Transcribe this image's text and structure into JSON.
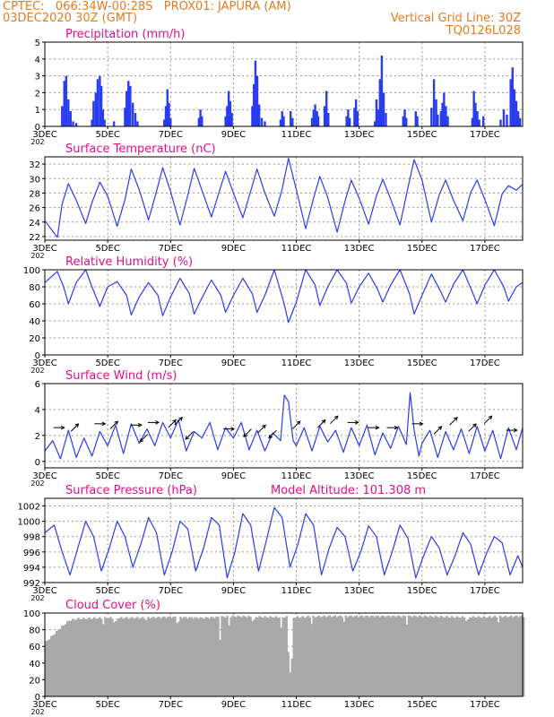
{
  "header": {
    "line1": "CPTEC:   066:34W-00:28S   PROX01: JAPURA (AM)",
    "line2": "03DEC2020 30Z (GMT)",
    "grid_note": "Vertical Grid Line: 30Z",
    "code": "TQ0126L028"
  },
  "colors": {
    "header": "#e87b1e",
    "panel_title": "#e0108c",
    "series": "#2a3cf0",
    "bars": "#2a3cf0",
    "cloud": "#a9a9a9",
    "grid": "#9a9a9a"
  },
  "x_axis": {
    "ticks": [
      3,
      5,
      7,
      9,
      11,
      13,
      15,
      17
    ],
    "tick_labels": [
      "3DEC",
      "5DEC",
      "7DEC",
      "9DEC",
      "11DEC",
      "13DEC",
      "15DEC",
      "17DEC"
    ],
    "range_days": [
      3,
      18.2
    ],
    "year_fragment": "202"
  },
  "chart_data": [
    {
      "type": "bar",
      "title": "Precipitation (mm/h)",
      "ylim": [
        0,
        5
      ],
      "yticks": [
        0,
        1,
        2,
        3,
        4,
        5
      ],
      "bars": [
        [
          3.55,
          1.2
        ],
        [
          3.62,
          2.7
        ],
        [
          3.68,
          3.0
        ],
        [
          3.75,
          1.6
        ],
        [
          3.82,
          0.9
        ],
        [
          3.9,
          0.3
        ],
        [
          4.0,
          0.2
        ],
        [
          4.5,
          0.4
        ],
        [
          4.55,
          1.5
        ],
        [
          4.62,
          2.0
        ],
        [
          4.68,
          2.8
        ],
        [
          4.75,
          3.0
        ],
        [
          4.8,
          2.4
        ],
        [
          4.85,
          1.0
        ],
        [
          4.9,
          0.4
        ],
        [
          5.2,
          0.3
        ],
        [
          5.55,
          1.1
        ],
        [
          5.6,
          2.1
        ],
        [
          5.66,
          2.7
        ],
        [
          5.72,
          2.4
        ],
        [
          5.8,
          1.4
        ],
        [
          5.88,
          0.8
        ],
        [
          5.95,
          0.3
        ],
        [
          6.8,
          0.4
        ],
        [
          6.85,
          1.2
        ],
        [
          6.9,
          2.2
        ],
        [
          6.95,
          1.4
        ],
        [
          7.0,
          0.5
        ],
        [
          7.9,
          0.5
        ],
        [
          7.95,
          1.0
        ],
        [
          8.0,
          0.6
        ],
        [
          8.75,
          0.6
        ],
        [
          8.8,
          1.2
        ],
        [
          8.85,
          2.1
        ],
        [
          8.9,
          1.5
        ],
        [
          8.95,
          0.8
        ],
        [
          9.6,
          1.2
        ],
        [
          9.65,
          2.5
        ],
        [
          9.7,
          3.9
        ],
        [
          9.76,
          3.0
        ],
        [
          9.82,
          1.3
        ],
        [
          9.9,
          0.5
        ],
        [
          10.0,
          0.3
        ],
        [
          10.5,
          0.4
        ],
        [
          10.55,
          0.9
        ],
        [
          10.6,
          0.6
        ],
        [
          10.82,
          0.9
        ],
        [
          10.88,
          0.5
        ],
        [
          11.5,
          0.5
        ],
        [
          11.55,
          1.0
        ],
        [
          11.6,
          1.3
        ],
        [
          11.66,
          0.9
        ],
        [
          11.7,
          0.6
        ],
        [
          11.9,
          1.2
        ],
        [
          11.96,
          2.1
        ],
        [
          12.02,
          0.8
        ],
        [
          12.6,
          0.6
        ],
        [
          12.65,
          1.0
        ],
        [
          12.7,
          0.5
        ],
        [
          12.85,
          1.1
        ],
        [
          12.9,
          1.6
        ],
        [
          12.95,
          0.9
        ],
        [
          13.5,
          0.3
        ],
        [
          13.55,
          1.6
        ],
        [
          13.6,
          1.0
        ],
        [
          13.66,
          2.8
        ],
        [
          13.72,
          4.2
        ],
        [
          13.78,
          2.0
        ],
        [
          13.85,
          0.8
        ],
        [
          14.4,
          0.6
        ],
        [
          14.45,
          1.0
        ],
        [
          14.5,
          0.5
        ],
        [
          14.8,
          0.9
        ],
        [
          14.85,
          0.6
        ],
        [
          15.3,
          1.1
        ],
        [
          15.38,
          2.8
        ],
        [
          15.45,
          1.6
        ],
        [
          15.5,
          0.7
        ],
        [
          15.6,
          0.9
        ],
        [
          15.65,
          1.4
        ],
        [
          15.7,
          2.0
        ],
        [
          15.76,
          1.2
        ],
        [
          15.82,
          0.6
        ],
        [
          16.6,
          0.5
        ],
        [
          16.65,
          2.1
        ],
        [
          16.7,
          1.4
        ],
        [
          16.76,
          0.9
        ],
        [
          16.82,
          0.4
        ],
        [
          16.95,
          0.6
        ],
        [
          17.5,
          0.4
        ],
        [
          17.6,
          1.0
        ],
        [
          17.7,
          0.7
        ],
        [
          17.82,
          2.8
        ],
        [
          17.88,
          3.5
        ],
        [
          17.94,
          2.2
        ],
        [
          18.0,
          1.5
        ],
        [
          18.06,
          0.9
        ],
        [
          18.12,
          0.5
        ]
      ]
    },
    {
      "type": "line",
      "title": "Surface Temperature (nC)",
      "ylim": [
        21.5,
        33
      ],
      "yticks": [
        22,
        24,
        26,
        28,
        30,
        32
      ],
      "x": [
        3.0,
        3.4,
        3.55,
        3.75,
        4.0,
        4.3,
        4.5,
        4.75,
        5.0,
        5.3,
        5.55,
        5.75,
        6.0,
        6.3,
        6.55,
        6.75,
        7.0,
        7.3,
        7.55,
        7.75,
        8.0,
        8.3,
        8.55,
        8.75,
        9.0,
        9.3,
        9.55,
        9.75,
        10.0,
        10.3,
        10.55,
        10.75,
        11.0,
        11.3,
        11.55,
        11.75,
        12.0,
        12.3,
        12.55,
        12.75,
        13.0,
        13.3,
        13.55,
        13.75,
        14.0,
        14.3,
        14.55,
        14.75,
        15.0,
        15.3,
        15.55,
        15.75,
        16.0,
        16.3,
        16.55,
        16.75,
        17.0,
        17.3,
        17.55,
        17.75,
        18.0,
        18.2
      ],
      "y": [
        24.2,
        21.9,
        26.5,
        29.3,
        27.0,
        23.8,
        26.7,
        29.5,
        27.6,
        23.4,
        27.1,
        31.3,
        28.5,
        24.3,
        28.2,
        31.5,
        28.2,
        23.6,
        27.7,
        31.4,
        28.4,
        24.7,
        28.2,
        31.0,
        28.0,
        24.6,
        28.3,
        31.3,
        28.0,
        24.8,
        28.5,
        32.8,
        28.5,
        23.1,
        27.3,
        30.3,
        27.4,
        22.6,
        26.9,
        29.8,
        27.3,
        23.7,
        27.6,
        29.9,
        27.2,
        23.6,
        28.7,
        32.6,
        29.8,
        24.0,
        27.8,
        29.8,
        27.0,
        24.2,
        28.1,
        29.8,
        27.1,
        23.5,
        27.9,
        29.0,
        28.4,
        29.2
      ]
    },
    {
      "type": "line",
      "title": "Relative Humidity (%)",
      "ylim": [
        0,
        100
      ],
      "yticks": [
        0,
        20,
        40,
        60,
        80,
        100
      ],
      "x": [
        3.0,
        3.4,
        3.6,
        3.75,
        4.0,
        4.3,
        4.5,
        4.75,
        5.0,
        5.3,
        5.6,
        5.75,
        6.0,
        6.3,
        6.6,
        6.75,
        7.0,
        7.3,
        7.6,
        7.75,
        8.0,
        8.3,
        8.6,
        8.75,
        9.0,
        9.3,
        9.6,
        9.75,
        10.0,
        10.3,
        10.6,
        10.75,
        11.0,
        11.3,
        11.6,
        11.75,
        12.0,
        12.3,
        12.6,
        12.75,
        13.0,
        13.3,
        13.6,
        13.75,
        14.0,
        14.3,
        14.6,
        14.75,
        15.0,
        15.3,
        15.6,
        15.75,
        16.0,
        16.3,
        16.6,
        16.75,
        17.0,
        17.3,
        17.6,
        17.75,
        18.0,
        18.2
      ],
      "y": [
        85,
        98,
        80,
        60,
        85,
        100,
        80,
        57,
        80,
        86,
        70,
        47,
        68,
        85,
        70,
        46,
        68,
        90,
        72,
        48,
        67,
        88,
        70,
        50,
        70,
        90,
        72,
        50,
        70,
        100,
        62,
        38,
        62,
        100,
        82,
        58,
        80,
        100,
        84,
        61,
        80,
        96,
        76,
        62,
        82,
        100,
        72,
        48,
        70,
        95,
        74,
        62,
        83,
        100,
        74,
        60,
        82,
        100,
        80,
        63,
        80,
        85
      ]
    },
    {
      "type": "line",
      "title": "Surface Wind (m/s)",
      "ylim": [
        -0.5,
        6
      ],
      "yticks": [
        0,
        2,
        4,
        6
      ],
      "x": [
        3.0,
        3.25,
        3.5,
        3.75,
        4.0,
        4.25,
        4.5,
        4.75,
        5.0,
        5.25,
        5.5,
        5.75,
        6.0,
        6.25,
        6.5,
        6.75,
        7.0,
        7.25,
        7.5,
        7.75,
        8.0,
        8.25,
        8.5,
        8.75,
        9.0,
        9.25,
        9.5,
        9.75,
        10.0,
        10.25,
        10.5,
        10.62,
        10.75,
        10.9,
        11.0,
        11.25,
        11.5,
        11.75,
        12.0,
        12.25,
        12.5,
        12.75,
        13.0,
        13.25,
        13.5,
        13.75,
        14.0,
        14.25,
        14.5,
        14.62,
        14.75,
        14.9,
        15.0,
        15.25,
        15.5,
        15.75,
        16.0,
        16.25,
        16.5,
        16.75,
        17.0,
        17.25,
        17.5,
        17.75,
        18.0,
        18.2
      ],
      "y": [
        0.8,
        1.6,
        0.2,
        2.4,
        0.3,
        1.8,
        0.4,
        2.3,
        1.2,
        2.8,
        0.6,
        2.9,
        1.4,
        2.5,
        1.2,
        3.0,
        1.8,
        3.2,
        0.8,
        2.3,
        1.8,
        3.0,
        0.9,
        2.6,
        1.8,
        3.0,
        0.9,
        2.4,
        0.8,
        2.2,
        1.6,
        5.1,
        4.6,
        1.6,
        1.2,
        2.6,
        0.8,
        2.7,
        1.5,
        2.4,
        0.7,
        2.6,
        1.2,
        2.8,
        0.5,
        2.2,
        1.0,
        2.7,
        1.3,
        5.3,
        2.4,
        0.4,
        1.4,
        2.4,
        0.3,
        2.3,
        0.9,
        2.5,
        0.6,
        2.7,
        0.8,
        2.4,
        0.2,
        2.6,
        0.9,
        2.6
      ],
      "arrows": [
        {
          "x": 3.45,
          "y": 2.6,
          "dir": "E"
        },
        {
          "x": 3.95,
          "y": 2.6,
          "dir": "NE"
        },
        {
          "x": 4.75,
          "y": 2.9,
          "dir": "E"
        },
        {
          "x": 5.2,
          "y": 2.8,
          "dir": "NE"
        },
        {
          "x": 5.9,
          "y": 2.8,
          "dir": "E"
        },
        {
          "x": 6.45,
          "y": 3.0,
          "dir": "E"
        },
        {
          "x": 6.15,
          "y": 1.8,
          "dir": "SW"
        },
        {
          "x": 7.05,
          "y": 2.9,
          "dir": "NE"
        },
        {
          "x": 7.25,
          "y": 3.1,
          "dir": "NE"
        },
        {
          "x": 7.6,
          "y": 2.0,
          "dir": "SW"
        },
        {
          "x": 8.85,
          "y": 2.5,
          "dir": "E"
        },
        {
          "x": 9.45,
          "y": 2.2,
          "dir": "SW"
        },
        {
          "x": 9.9,
          "y": 2.5,
          "dir": "NE"
        },
        {
          "x": 10.25,
          "y": 2.1,
          "dir": "SW"
        },
        {
          "x": 11.0,
          "y": 2.8,
          "dir": "NE"
        },
        {
          "x": 11.8,
          "y": 2.9,
          "dir": "NE"
        },
        {
          "x": 12.2,
          "y": 3.2,
          "dir": "NE"
        },
        {
          "x": 12.8,
          "y": 3.0,
          "dir": "E"
        },
        {
          "x": 13.45,
          "y": 2.6,
          "dir": "E"
        },
        {
          "x": 14.05,
          "y": 2.6,
          "dir": "E"
        },
        {
          "x": 14.85,
          "y": 2.9,
          "dir": "E"
        },
        {
          "x": 15.5,
          "y": 2.4,
          "dir": "NE"
        },
        {
          "x": 16.0,
          "y": 3.1,
          "dir": "NE"
        },
        {
          "x": 16.6,
          "y": 2.6,
          "dir": "NE"
        },
        {
          "x": 17.1,
          "y": 3.2,
          "dir": "NE"
        },
        {
          "x": 17.85,
          "y": 2.4,
          "dir": "E"
        }
      ]
    },
    {
      "type": "line",
      "title": "Surface Pressure (hPa)",
      "subtitle": "Model Altitude: 101.308  m",
      "ylim": [
        992,
        1003
      ],
      "yticks": [
        992,
        994,
        996,
        998,
        1000,
        1002
      ],
      "x": [
        3.0,
        3.3,
        3.55,
        3.8,
        4.05,
        4.3,
        4.55,
        4.8,
        5.05,
        5.3,
        5.55,
        5.8,
        6.05,
        6.3,
        6.55,
        6.8,
        7.05,
        7.3,
        7.55,
        7.8,
        8.05,
        8.3,
        8.55,
        8.8,
        9.05,
        9.3,
        9.55,
        9.8,
        10.05,
        10.3,
        10.55,
        10.8,
        11.05,
        11.3,
        11.55,
        11.8,
        12.05,
        12.3,
        12.55,
        12.8,
        13.05,
        13.3,
        13.55,
        13.8,
        14.05,
        14.3,
        14.55,
        14.8,
        15.05,
        15.3,
        15.55,
        15.8,
        16.05,
        16.3,
        16.55,
        16.8,
        17.05,
        17.3,
        17.55,
        17.8,
        18.05,
        18.2
      ],
      "y": [
        998.5,
        999.5,
        996.0,
        993.0,
        996.5,
        1000.0,
        998.0,
        993.5,
        996.5,
        1000.0,
        998.0,
        994.0,
        997.0,
        1000.5,
        998.5,
        993.0,
        996.0,
        1000.0,
        999.0,
        993.5,
        996.5,
        1000.5,
        999.5,
        992.6,
        996.0,
        1001.0,
        999.5,
        993.5,
        997.5,
        1001.8,
        1000.5,
        994.0,
        997.0,
        1001.0,
        999.5,
        993.0,
        996.5,
        999.2,
        998.0,
        993.5,
        996.0,
        999.4,
        998.0,
        993.0,
        996.0,
        999.5,
        997.8,
        992.6,
        995.5,
        998.0,
        996.5,
        993.0,
        995.5,
        998.5,
        997.0,
        993.0,
        995.8,
        998.0,
        997.2,
        993.0,
        995.5,
        994.0
      ]
    },
    {
      "type": "bar",
      "title": "Cloud Cover (%)",
      "ylim": [
        0,
        100
      ],
      "yticks": [
        0,
        20,
        40,
        60,
        80,
        100
      ],
      "level_points": [
        [
          3.0,
          66
        ],
        [
          3.25,
          75
        ],
        [
          3.5,
          84
        ],
        [
          3.75,
          92
        ],
        [
          4.0,
          94
        ],
        [
          5.0,
          95
        ],
        [
          6.0,
          95
        ],
        [
          7.0,
          96
        ],
        [
          8.0,
          95
        ],
        [
          9.0,
          97
        ],
        [
          10.0,
          96
        ],
        [
          11.0,
          96
        ],
        [
          12.0,
          97
        ],
        [
          13.0,
          97
        ],
        [
          14.0,
          97
        ],
        [
          15.0,
          97
        ],
        [
          16.0,
          96
        ],
        [
          17.0,
          96
        ],
        [
          18.0,
          97
        ],
        [
          18.2,
          97
        ]
      ],
      "dips": [
        [
          4.85,
          88
        ],
        [
          5.2,
          90
        ],
        [
          6.2,
          92
        ],
        [
          7.2,
          90
        ],
        [
          8.55,
          70
        ],
        [
          8.85,
          86
        ],
        [
          9.6,
          92
        ],
        [
          10.5,
          82
        ],
        [
          10.7,
          55
        ],
        [
          10.75,
          30
        ],
        [
          10.8,
          45
        ],
        [
          11.45,
          88
        ],
        [
          12.5,
          90
        ],
        [
          14.5,
          88
        ],
        [
          16.4,
          92
        ],
        [
          17.4,
          90
        ]
      ]
    }
  ]
}
